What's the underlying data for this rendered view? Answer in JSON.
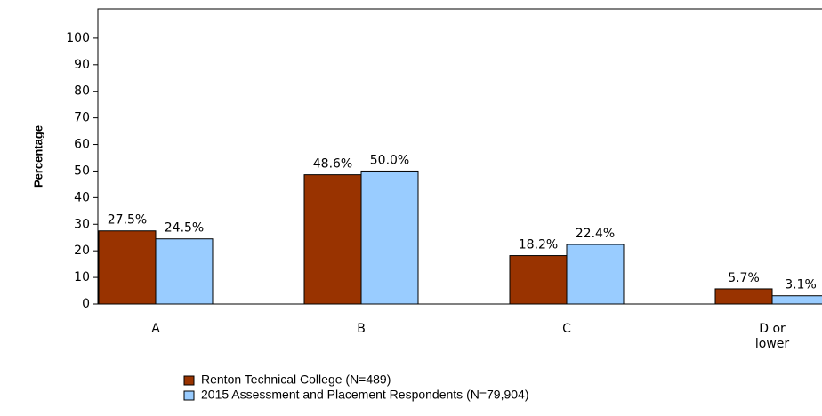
{
  "chart_data": {
    "type": "bar",
    "y_label": "Percentage",
    "categories": [
      "A",
      "B",
      "C",
      "D or\nlower"
    ],
    "series": [
      {
        "name": "Renton Technical College (N=489)",
        "color": "#993300",
        "values": [
          27.5,
          48.6,
          18.2,
          5.7
        ],
        "value_labels": [
          "27.5%",
          "48.6%",
          "18.2%",
          "5.7%"
        ]
      },
      {
        "name": "2015 Assessment and Placement Respondents (N=79,904)",
        "color": "#99ccff",
        "values": [
          24.5,
          50.0,
          22.4,
          3.1
        ],
        "value_labels": [
          "24.5%",
          "50.0%",
          "22.4%",
          "3.1%"
        ]
      }
    ],
    "ylim": [
      0,
      111
    ],
    "yticks": [
      0,
      10,
      20,
      30,
      40,
      50,
      60,
      70,
      80,
      90,
      100
    ]
  }
}
